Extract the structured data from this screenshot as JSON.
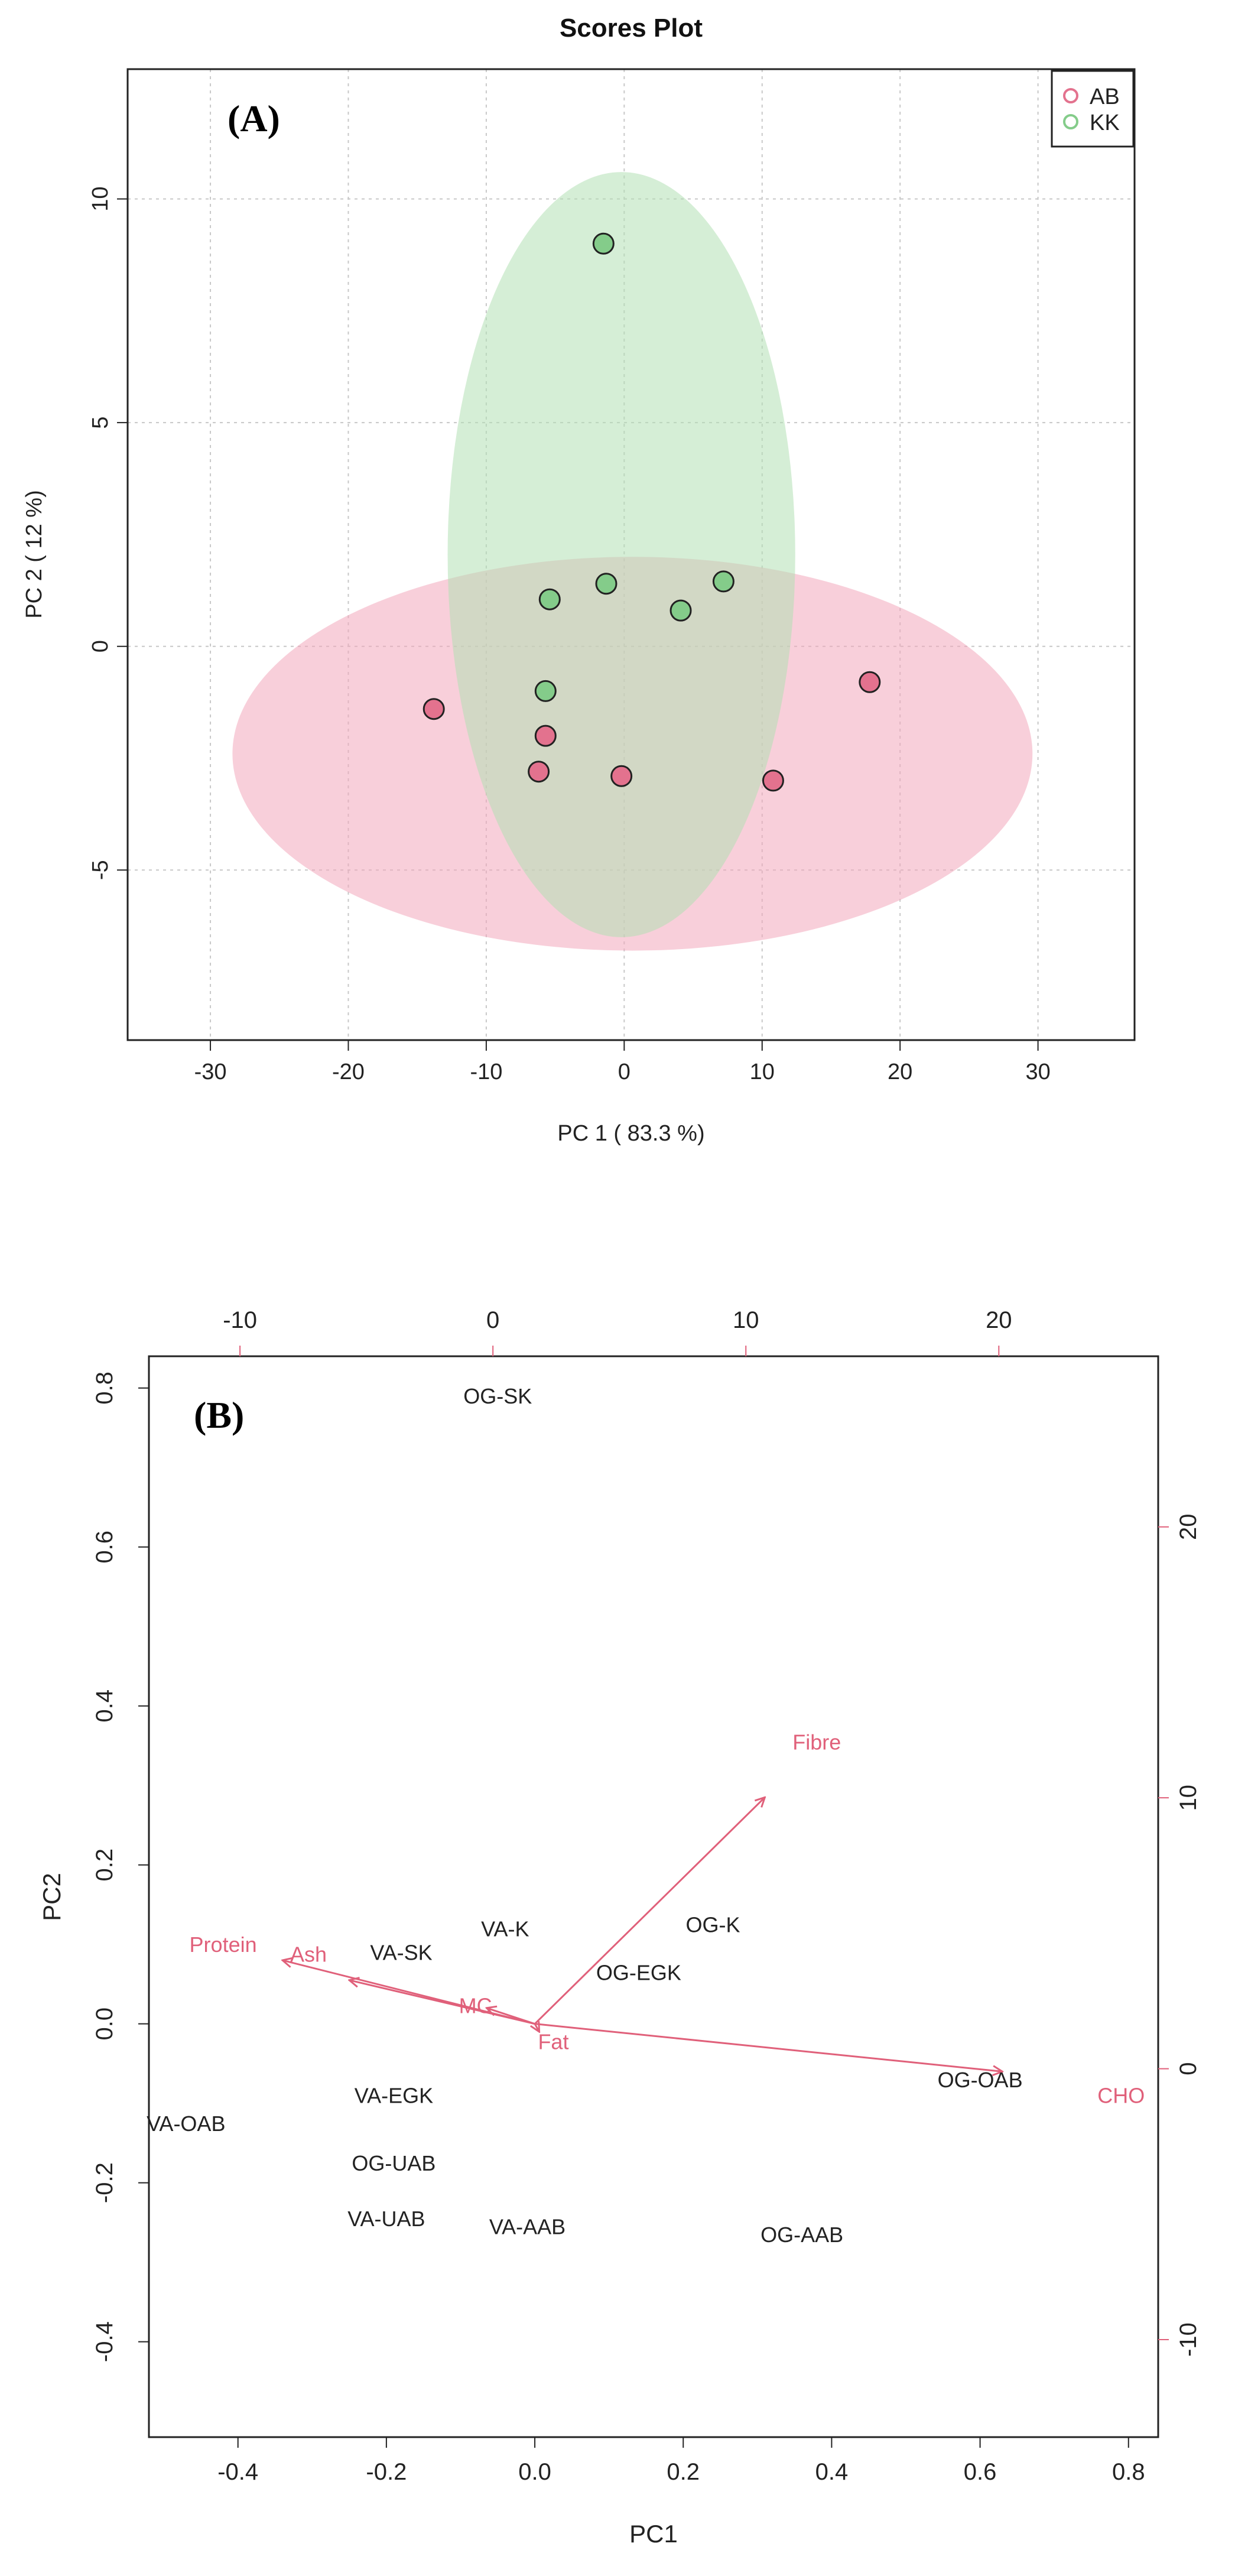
{
  "chart_data": [
    {
      "type": "scatter",
      "panel_label": "(A)",
      "title": "Scores Plot",
      "xlabel": "PC 1 ( 83.3 %)",
      "ylabel": "PC 2 ( 12 %)",
      "xlim": [
        -36,
        37
      ],
      "ylim": [
        -8.8,
        12.9
      ],
      "xticks": [
        "-30",
        "-20",
        "-10",
        "0",
        "10",
        "20",
        "30"
      ],
      "yticks": [
        "-5",
        "0",
        "5",
        "10"
      ],
      "grid": true,
      "legend_position": "top-right",
      "series": [
        {
          "name": "AB",
          "color": "#e3728e",
          "ellipse_color": "#f2a7bc",
          "ellipse": {
            "cx": 0.6,
            "cy": -2.4,
            "rx": 29,
            "ry": 4.4
          },
          "points": [
            {
              "x": -13.8,
              "y": -1.4
            },
            {
              "x": -5.7,
              "y": -2.0
            },
            {
              "x": -6.2,
              "y": -2.8
            },
            {
              "x": -0.2,
              "y": -2.9
            },
            {
              "x": 10.8,
              "y": -3.0
            },
            {
              "x": 17.8,
              "y": -0.8
            }
          ]
        },
        {
          "name": "KK",
          "color": "#84cc8a",
          "ellipse_color": "#b3e0b5",
          "ellipse": {
            "cx": -0.2,
            "cy": 2.05,
            "rx": 12.6,
            "ry": 8.55
          },
          "points": [
            {
              "x": -1.5,
              "y": 9.0
            },
            {
              "x": -5.4,
              "y": 1.05
            },
            {
              "x": -1.3,
              "y": 1.4
            },
            {
              "x": 4.1,
              "y": 0.8
            },
            {
              "x": 7.2,
              "y": 1.45
            },
            {
              "x": -5.7,
              "y": -1.0
            }
          ]
        }
      ]
    },
    {
      "type": "scatter",
      "subtype": "biplot",
      "panel_label": "(B)",
      "xlabel": "PC1",
      "ylabel": "PC2",
      "xlim": [
        -0.52,
        0.84
      ],
      "ylim": [
        -0.52,
        0.84
      ],
      "xticks": [
        "-0.4",
        "-0.2",
        "0.0",
        "0.2",
        "0.4",
        "0.6",
        "0.8"
      ],
      "yticks": [
        "-0.4",
        "-0.2",
        "0.0",
        "0.2",
        "0.4",
        "0.6",
        "0.8"
      ],
      "top_axis": {
        "lim": [
          -13.6,
          26.3
        ],
        "ticks": [
          "-10",
          "0",
          "10",
          "20"
        ]
      },
      "right_axis": {
        "lim": [
          -13.6,
          26.3
        ],
        "ticks": [
          "-10",
          "0",
          "10",
          "20"
        ]
      },
      "variable_color": "#e0607a",
      "samples": [
        {
          "label": "OG-SK",
          "x": -0.05,
          "y": 0.79
        },
        {
          "label": "VA-K",
          "x": -0.04,
          "y": 0.12
        },
        {
          "label": "OG-K",
          "x": 0.24,
          "y": 0.125
        },
        {
          "label": "VA-SK",
          "x": -0.18,
          "y": 0.09
        },
        {
          "label": "OG-EGK",
          "x": 0.14,
          "y": 0.065
        },
        {
          "label": "OG-OAB",
          "x": 0.6,
          "y": -0.07
        },
        {
          "label": "VA-EGK",
          "x": -0.19,
          "y": -0.09
        },
        {
          "label": "VA-OAB",
          "x": -0.47,
          "y": -0.125
        },
        {
          "label": "OG-UAB",
          "x": -0.19,
          "y": -0.175
        },
        {
          "label": "VA-UAB",
          "x": -0.2,
          "y": -0.245
        },
        {
          "label": "VA-AAB",
          "x": -0.01,
          "y": -0.255
        },
        {
          "label": "OG-AAB",
          "x": 0.36,
          "y": -0.265
        }
      ],
      "variables": [
        {
          "label": "Fibre",
          "x": 0.31,
          "y": 0.285,
          "lx": 0.38,
          "ly": 0.355
        },
        {
          "label": "CHO",
          "x": 0.63,
          "y": -0.06,
          "lx": 0.79,
          "ly": -0.09
        },
        {
          "label": "Protein",
          "x": -0.34,
          "y": 0.08,
          "lx": -0.42,
          "ly": 0.1
        },
        {
          "label": "Ash",
          "x": -0.25,
          "y": 0.055,
          "lx": -0.305,
          "ly": 0.088
        },
        {
          "label": "MC",
          "x": -0.065,
          "y": 0.02,
          "lx": -0.08,
          "ly": 0.023
        },
        {
          "label": "Fat",
          "x": 0.006,
          "y": -0.01,
          "lx": 0.025,
          "ly": -0.022
        }
      ]
    }
  ]
}
